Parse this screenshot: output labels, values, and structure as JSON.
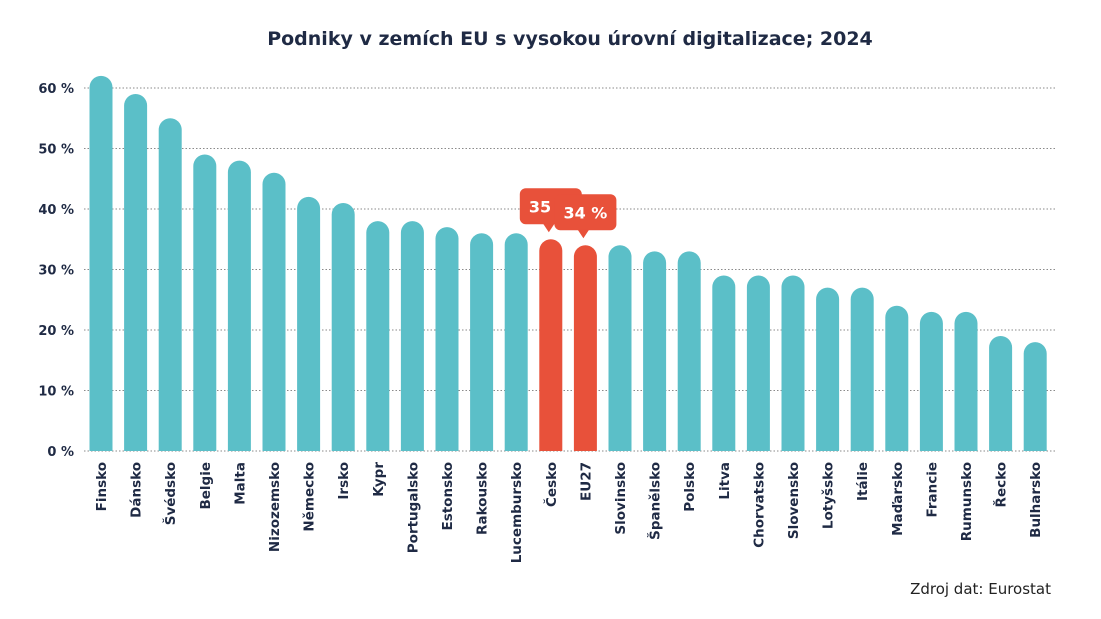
{
  "chart_data": {
    "type": "bar",
    "title": "Podniky v zemích EU s vysokou úrovní digitalizace; 2024",
    "source": "Zdroj dat: Eurostat",
    "categories": [
      "Finsko",
      "Dánsko",
      "Švédsko",
      "Belgie",
      "Malta",
      "Nizozemsko",
      "Německo",
      "Irsko",
      "Kypr",
      "Portugalsko",
      "Estonsko",
      "Rakousko",
      "Lucembursko",
      "Česko",
      "EU27",
      "Slovinsko",
      "Španělsko",
      "Polsko",
      "Litva",
      "Chorvatsko",
      "Slovensko",
      "Lotyšsko",
      "Itálie",
      "Maďarsko",
      "Francie",
      "Rumunsko",
      "Řecko",
      "Bulharsko"
    ],
    "values": [
      62,
      59,
      55,
      49,
      48,
      46,
      42,
      41,
      38,
      38,
      37,
      36,
      36,
      35,
      34,
      34,
      33,
      33,
      29,
      29,
      29,
      27,
      27,
      24,
      23,
      23,
      19,
      18
    ],
    "ylim": [
      0,
      60
    ],
    "yticks": [
      0,
      10,
      20,
      30,
      40,
      50,
      60
    ],
    "ytick_labels": [
      "0 %",
      "10 %",
      "20 %",
      "30 %",
      "40 %",
      "50 %",
      "60 %"
    ],
    "grid": true,
    "highlighted": [
      "Česko",
      "EU27"
    ],
    "annotations": [
      {
        "category": "Česko",
        "text": "35 %"
      },
      {
        "category": "EU27",
        "text": "34 %"
      }
    ],
    "colors": {
      "bar": "#5bbfc8",
      "highlight": "#e8513a",
      "grid": "#8a8a8a",
      "text": "#1f2a44"
    }
  }
}
